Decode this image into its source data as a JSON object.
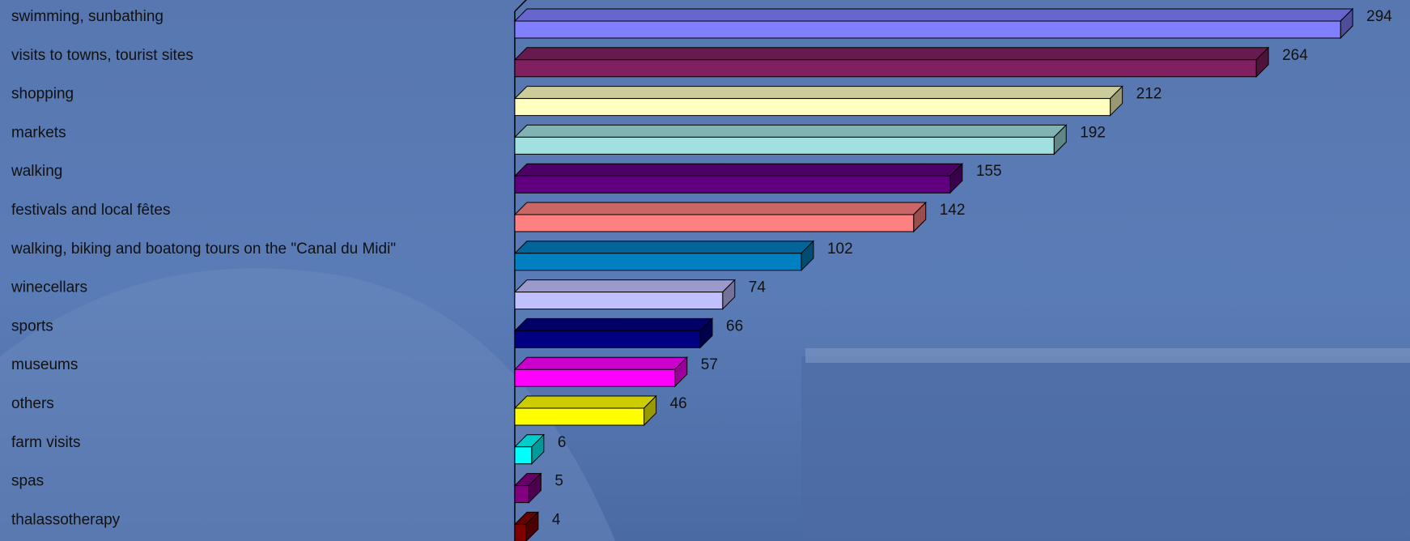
{
  "chart_data": {
    "type": "bar",
    "orientation": "horizontal",
    "three_d": true,
    "categories": [
      "swimming, sunbathing",
      "visits to towns, tourist sites",
      "shopping",
      "markets",
      "walking",
      "festivals and local fêtes",
      "walking, biking and boatong tours on the \"Canal du Midi\"",
      "winecellars",
      "sports",
      "museums",
      "others",
      "farm visits",
      "spas",
      "thalassotherapy"
    ],
    "values": [
      294,
      264,
      212,
      192,
      155,
      142,
      102,
      74,
      66,
      57,
      46,
      6,
      5,
      4
    ],
    "colors": [
      "#8080ff",
      "#802060",
      "#ffffc0",
      "#a0e0e0",
      "#600080",
      "#ff8080",
      "#0080c0",
      "#c0c0ff",
      "#000080",
      "#ff00ff",
      "#ffff00",
      "#00ffff",
      "#800080",
      "#800000"
    ],
    "xlim": [
      0,
      300
    ]
  }
}
